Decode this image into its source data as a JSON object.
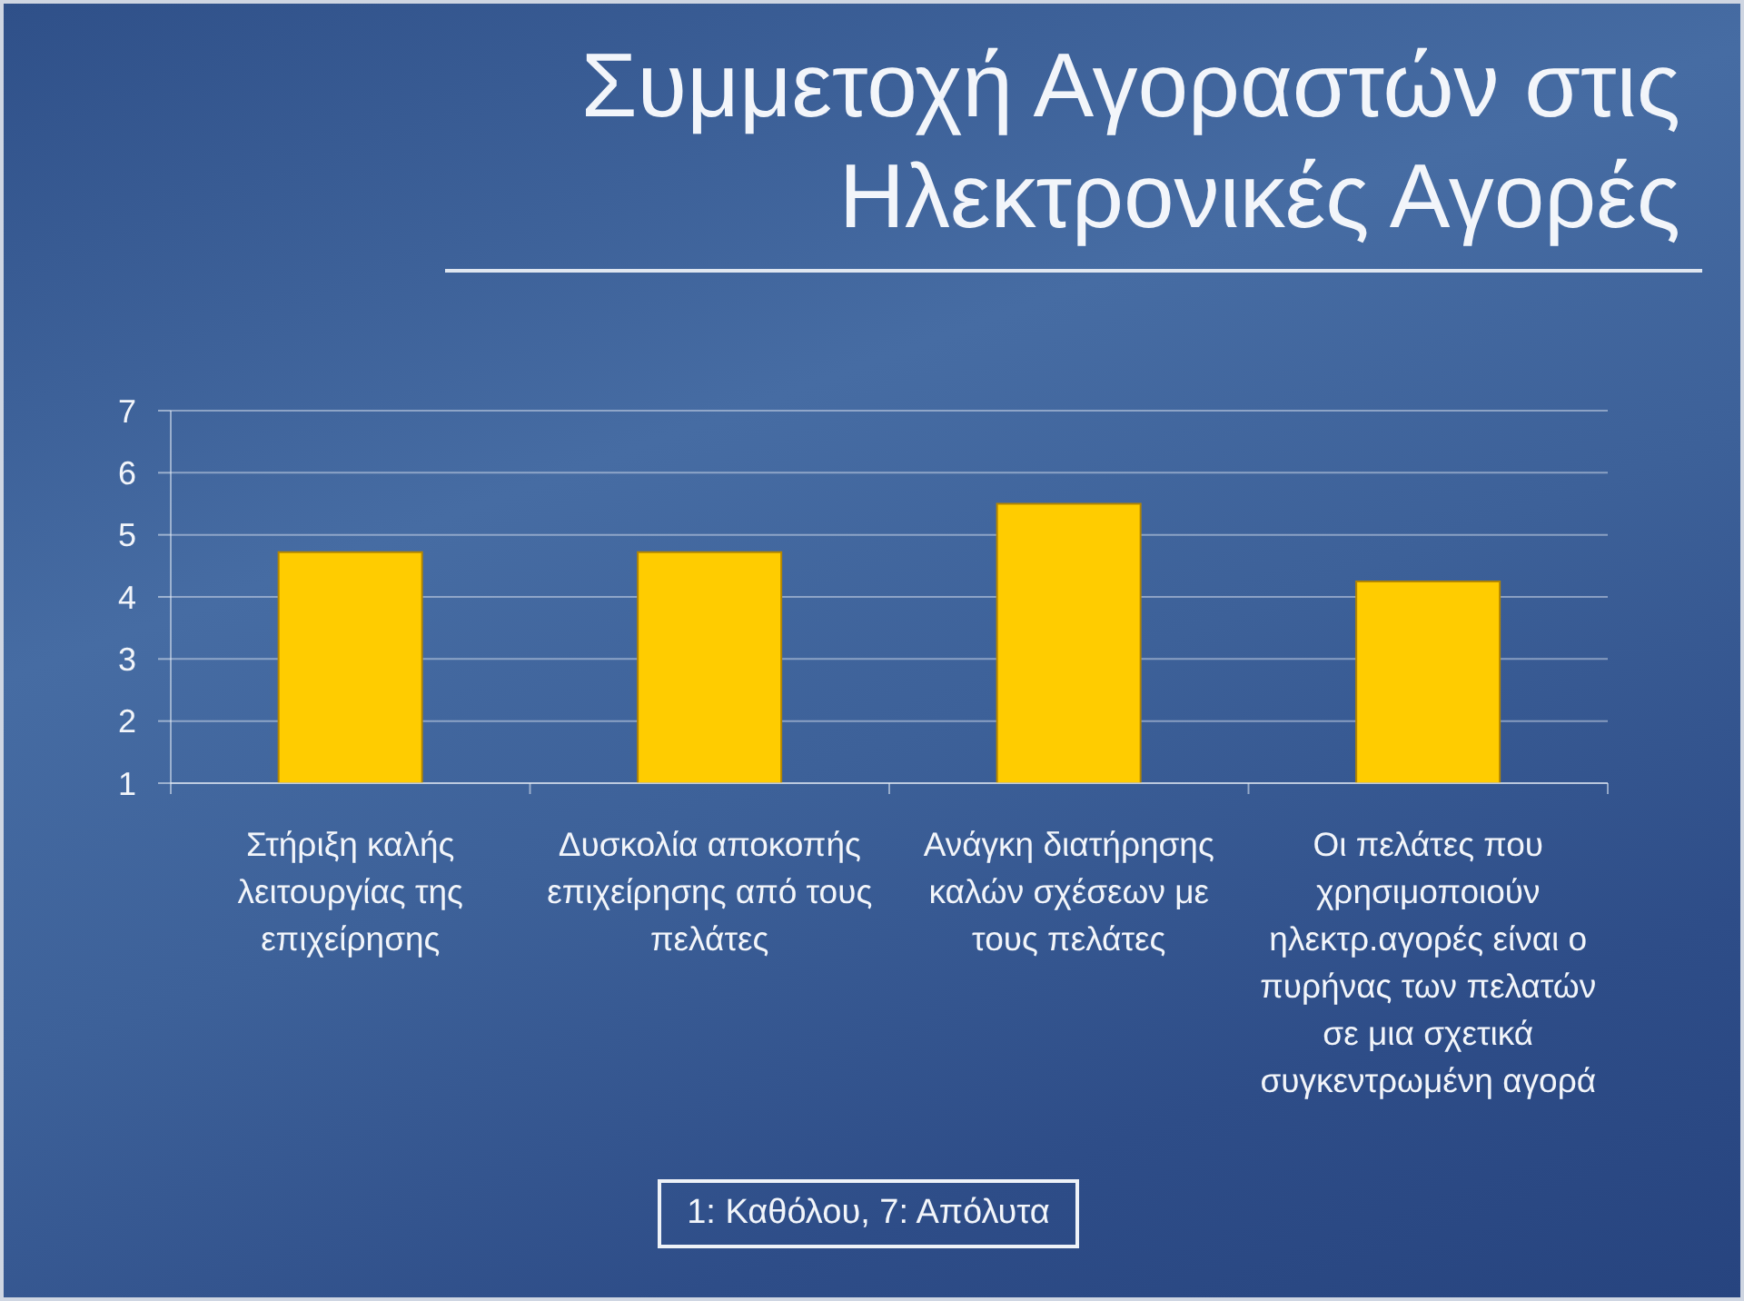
{
  "chart_data": {
    "type": "bar",
    "title": "Συμμετοχή Αγοραστών στις Ηλεκτρονικές Αγορές",
    "categories": [
      "Στήριξη καλής λειτουργίας της επιχείρησης",
      "Δυσκολία αποκοπής επιχείρησης από τους πελάτες",
      "Ανάγκη διατήρησης καλών σχέσεων με τους πελάτες",
      "Οι πελάτες που χρησιμοποιούν ηλεκτρ.αγορές είναι ο πυρήνας των πελατών σε μια σχετικά συγκεντρωμένη αγορά"
    ],
    "values": [
      4.72,
      4.72,
      5.5,
      4.25
    ],
    "color": "#ffcc00",
    "ylim": [
      1,
      7
    ],
    "yticks": [
      1,
      2,
      3,
      4,
      5,
      6,
      7
    ],
    "grid": "y",
    "annotations": [
      "1: Καθόλου, 7: Απόλυτα"
    ]
  }
}
